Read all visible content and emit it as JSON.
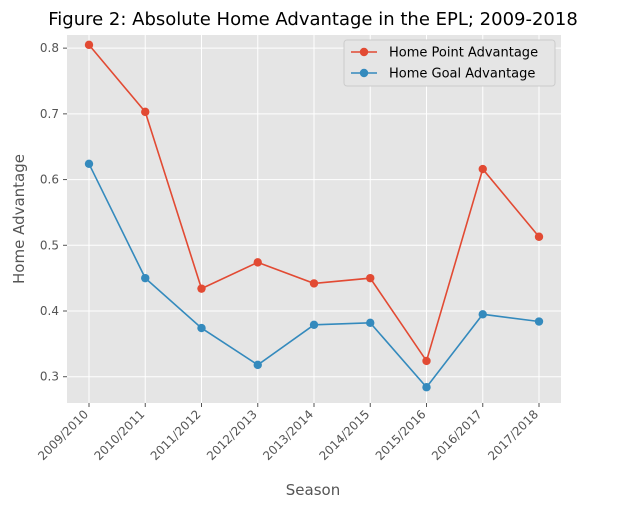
{
  "chart_data": {
    "type": "line",
    "title": "Figure 2: Absolute Home Advantage in the EPL; 2009-2018",
    "xlabel": "Season",
    "ylabel": "Home Advantage",
    "categories": [
      "2009/2010",
      "2010/2011",
      "2011/2012",
      "2012/2013",
      "2013/2014",
      "2014/2015",
      "2015/2016",
      "2016/2017",
      "2017/2018"
    ],
    "yticks": [
      "0.3",
      "0.4",
      "0.5",
      "0.6",
      "0.7",
      "0.8"
    ],
    "ylim": [
      0.26,
      0.82
    ],
    "grid": true,
    "legend_position": "top-right",
    "series": [
      {
        "name": "Home Point Advantage",
        "color": "#E24A33",
        "values": [
          0.805,
          0.703,
          0.434,
          0.474,
          0.442,
          0.45,
          0.324,
          0.616,
          0.513
        ]
      },
      {
        "name": "Home Goal Advantage",
        "color": "#348ABD",
        "values": [
          0.624,
          0.45,
          0.374,
          0.318,
          0.379,
          0.382,
          0.284,
          0.395,
          0.384
        ]
      }
    ]
  }
}
